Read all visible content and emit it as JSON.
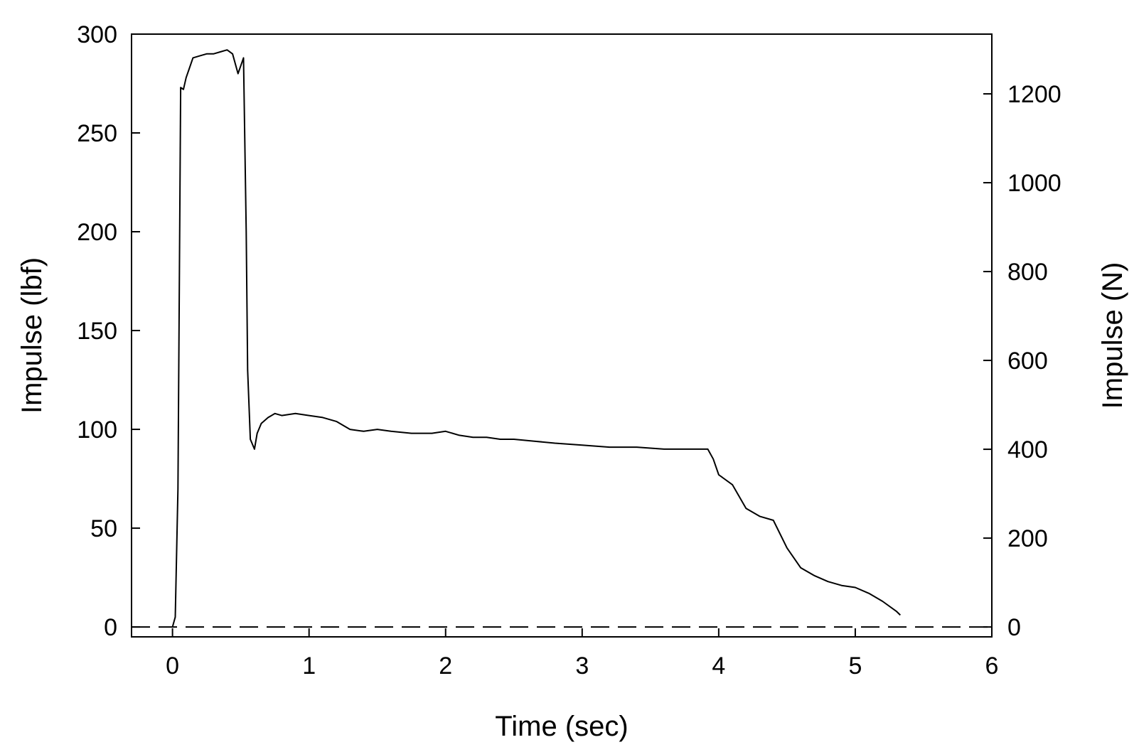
{
  "chart_data": {
    "type": "line",
    "xlabel": "Time (sec)",
    "ylabel": "Impulse (lbf)",
    "y2label": "Impulse (N)",
    "xlim": [
      -0.3,
      6
    ],
    "ylim": [
      -5,
      300
    ],
    "y2lim": [
      -22.24,
      1334.47
    ],
    "xticks": [
      0,
      1,
      2,
      3,
      4,
      5,
      6
    ],
    "yticks": [
      0,
      50,
      100,
      150,
      200,
      250,
      300
    ],
    "y2ticks": [
      0,
      200,
      400,
      600,
      800,
      1000,
      1200
    ],
    "grid": false,
    "legend": "none",
    "reference_line": {
      "y": 0,
      "style": "dashed"
    },
    "series": [
      {
        "color": "#000000",
        "x": [
          0.0,
          0.02,
          0.04,
          0.06,
          0.08,
          0.1,
          0.12,
          0.15,
          0.2,
          0.25,
          0.3,
          0.35,
          0.4,
          0.44,
          0.48,
          0.52,
          0.54,
          0.55,
          0.57,
          0.6,
          0.62,
          0.65,
          0.7,
          0.75,
          0.8,
          0.9,
          1.0,
          1.1,
          1.2,
          1.25,
          1.3,
          1.4,
          1.5,
          1.6,
          1.75,
          1.9,
          2.0,
          2.1,
          2.2,
          2.3,
          2.4,
          2.5,
          2.65,
          2.8,
          3.0,
          3.2,
          3.4,
          3.6,
          3.8,
          3.92,
          3.96,
          4.0,
          4.1,
          4.2,
          4.3,
          4.4,
          4.5,
          4.6,
          4.7,
          4.8,
          4.9,
          5.0,
          5.1,
          5.2,
          5.3,
          5.33
        ],
        "y": [
          0,
          5,
          70,
          273,
          272,
          278,
          282,
          288,
          289,
          290,
          290,
          291,
          292,
          290,
          280,
          288,
          200,
          130,
          95,
          90,
          98,
          103,
          106,
          108,
          107,
          108,
          107,
          106,
          104,
          102,
          100,
          99,
          100,
          99,
          98,
          98,
          99,
          97,
          96,
          96,
          95,
          95,
          94,
          93,
          92,
          91,
          91,
          90,
          90,
          90,
          85,
          77,
          72,
          60,
          56,
          54,
          40,
          30,
          26,
          23,
          21,
          20,
          17,
          13,
          8,
          6
        ]
      }
    ]
  }
}
